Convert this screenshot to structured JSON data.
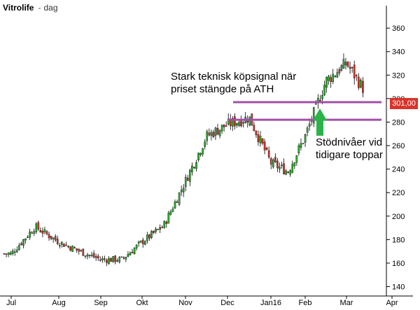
{
  "header": {
    "ticker": "Vitrolife",
    "separator": "-",
    "period": "dag"
  },
  "price_badge": {
    "label": "301,00",
    "color": "#d9342b"
  },
  "annotations": {
    "buy_signal": [
      "Stark teknisk köpsignal när",
      "priset stängde på ATH"
    ],
    "support": [
      "Stödnivåer vid",
      "tidigare toppar"
    ]
  },
  "colors": {
    "up": "#2bb32b",
    "down": "#d9342b",
    "wick": "#000000",
    "support_line": "#a050a8",
    "arrow": "#2bb34a",
    "grid": "#cccccc",
    "axis": "#000000"
  },
  "chart_data": {
    "type": "candlestick",
    "title": "Vitrolife",
    "period": "dag",
    "x_tick_labels": [
      "Jul",
      "Aug",
      "Sep",
      "Okt",
      "Nov",
      "Dec",
      "Jan16",
      "Feb",
      "Mar",
      "Apr"
    ],
    "y_ticks": [
      140,
      160,
      180,
      200,
      220,
      240,
      260,
      280,
      300,
      320,
      340,
      360
    ],
    "ylim": [
      132,
      372
    ],
    "last_price": 301,
    "support_levels": [
      297,
      282
    ],
    "grid": false,
    "monthly_path": [
      {
        "month": "Jul",
        "close": 168
      },
      {
        "month": "Jul",
        "close": 191
      },
      {
        "month": "Aug",
        "close": 178
      },
      {
        "month": "Aug",
        "close": 170
      },
      {
        "month": "Sep",
        "close": 163
      },
      {
        "month": "Sep",
        "close": 163
      },
      {
        "month": "Okt",
        "close": 178
      },
      {
        "month": "Okt",
        "close": 192
      },
      {
        "month": "Nov",
        "close": 230
      },
      {
        "month": "Nov",
        "close": 268
      },
      {
        "month": "Dec",
        "close": 278
      },
      {
        "month": "Dec",
        "close": 284
      },
      {
        "month": "Jan16",
        "close": 245
      },
      {
        "month": "Jan16",
        "close": 238
      },
      {
        "month": "Feb",
        "close": 268
      },
      {
        "month": "Feb",
        "close": 315
      },
      {
        "month": "Mar",
        "close": 330
      },
      {
        "month": "Mar",
        "close": 301
      }
    ]
  }
}
